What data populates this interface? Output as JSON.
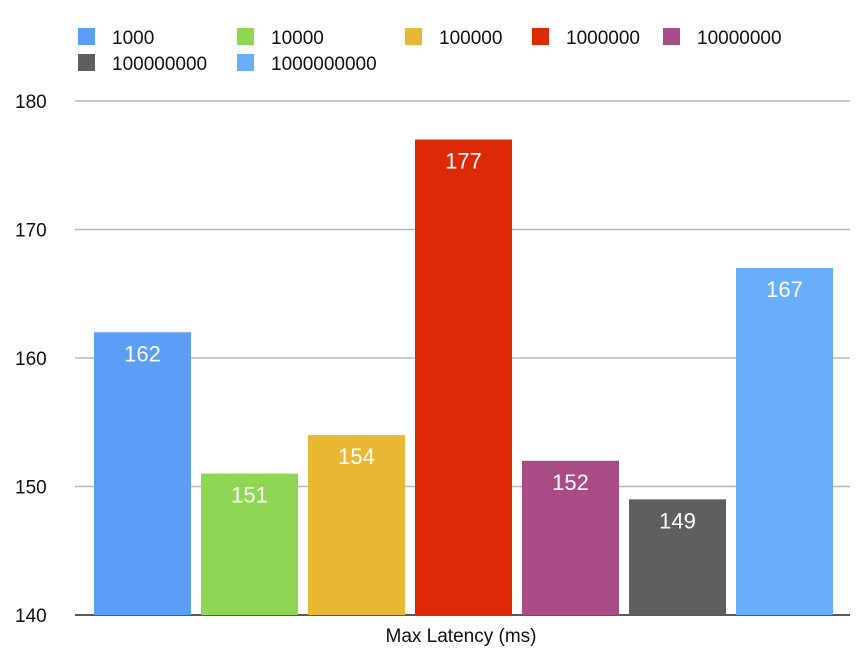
{
  "chart_data": {
    "type": "bar",
    "title": "",
    "xlabel": "Max Latency (ms)",
    "ylabel": "",
    "ylim": [
      140,
      180
    ],
    "yticks": [
      140,
      150,
      160,
      170,
      180
    ],
    "grid": true,
    "legend_position": "top",
    "categories": [
      "Max Latency (ms)"
    ],
    "series": [
      {
        "name": "1000",
        "values": [
          162
        ],
        "color": "#5A9EF8"
      },
      {
        "name": "10000",
        "values": [
          151
        ],
        "color": "#8ED654"
      },
      {
        "name": "100000",
        "values": [
          154
        ],
        "color": "#E8B734"
      },
      {
        "name": "1000000",
        "values": [
          177
        ],
        "color": "#DC2A07"
      },
      {
        "name": "10000000",
        "values": [
          152
        ],
        "color": "#A94B86"
      },
      {
        "name": "100000000",
        "values": [
          149
        ],
        "color": "#5F5F5F"
      },
      {
        "name": "1000000000",
        "values": [
          167
        ],
        "color": "#68AEF9"
      }
    ]
  }
}
